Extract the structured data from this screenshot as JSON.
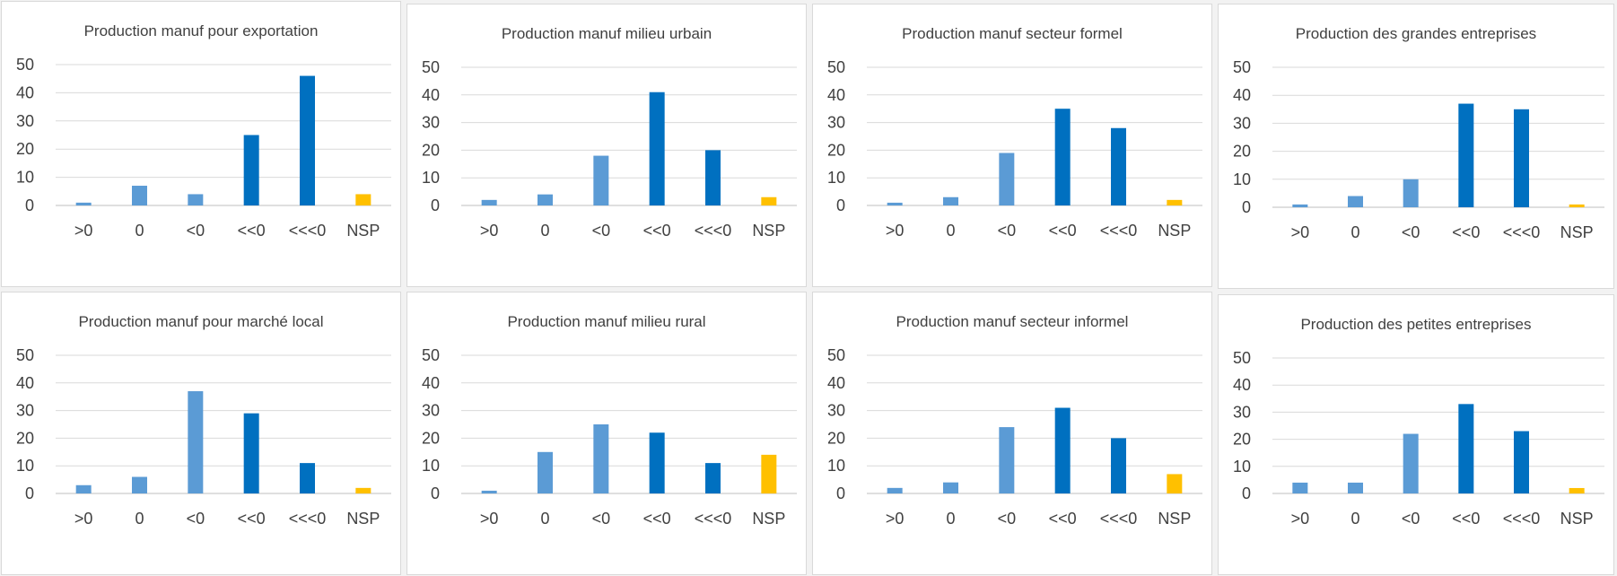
{
  "colors": {
    "light_blue": "#5b9bd5",
    "dark_blue": "#0070c0",
    "gold": "#ffc000"
  },
  "chart_data": [
    {
      "type": "bar",
      "title": "Production manuf pour exportation",
      "categories": [
        ">0",
        "0",
        "<0",
        "<<0",
        "<<<0",
        "NSP"
      ],
      "values": [
        1,
        7,
        4,
        25,
        46,
        4
      ],
      "bar_colors": [
        "light_blue",
        "light_blue",
        "light_blue",
        "dark_blue",
        "dark_blue",
        "gold"
      ],
      "ylim": [
        0,
        50
      ],
      "yticks": [
        0,
        10,
        20,
        30,
        40,
        50
      ],
      "grid": true,
      "legend": "none"
    },
    {
      "type": "bar",
      "title": "Production manuf milieu urbain",
      "categories": [
        ">0",
        "0",
        "<0",
        "<<0",
        "<<<0",
        "NSP"
      ],
      "values": [
        2,
        4,
        18,
        41,
        20,
        3
      ],
      "bar_colors": [
        "light_blue",
        "light_blue",
        "light_blue",
        "dark_blue",
        "dark_blue",
        "gold"
      ],
      "ylim": [
        0,
        50
      ],
      "yticks": [
        0,
        10,
        20,
        30,
        40,
        50
      ],
      "grid": true,
      "legend": "none"
    },
    {
      "type": "bar",
      "title": "Production manuf secteur formel",
      "categories": [
        ">0",
        "0",
        "<0",
        "<<0",
        "<<<0",
        "NSP"
      ],
      "values": [
        1,
        3,
        19,
        35,
        28,
        2
      ],
      "bar_colors": [
        "light_blue",
        "light_blue",
        "light_blue",
        "dark_blue",
        "dark_blue",
        "gold"
      ],
      "ylim": [
        0,
        50
      ],
      "yticks": [
        0,
        10,
        20,
        30,
        40,
        50
      ],
      "grid": true,
      "legend": "none"
    },
    {
      "type": "bar",
      "title": "Production des grandes entreprises",
      "categories": [
        ">0",
        "0",
        "<0",
        "<<0",
        "<<<0",
        "NSP"
      ],
      "values": [
        1,
        4,
        10,
        37,
        35,
        1
      ],
      "bar_colors": [
        "light_blue",
        "light_blue",
        "light_blue",
        "dark_blue",
        "dark_blue",
        "gold"
      ],
      "ylim": [
        0,
        50
      ],
      "yticks": [
        0,
        10,
        20,
        30,
        40,
        50
      ],
      "grid": true,
      "legend": "none"
    },
    {
      "type": "bar",
      "title": "Production manuf pour marché local",
      "categories": [
        ">0",
        "0",
        "<0",
        "<<0",
        "<<<0",
        "NSP"
      ],
      "values": [
        3,
        6,
        37,
        29,
        11,
        2
      ],
      "bar_colors": [
        "light_blue",
        "light_blue",
        "light_blue",
        "dark_blue",
        "dark_blue",
        "gold"
      ],
      "ylim": [
        0,
        50
      ],
      "yticks": [
        0,
        10,
        20,
        30,
        40,
        50
      ],
      "grid": true,
      "legend": "none"
    },
    {
      "type": "bar",
      "title": "Production manuf milieu rural",
      "categories": [
        ">0",
        "0",
        "<0",
        "<<0",
        "<<<0",
        "NSP"
      ],
      "values": [
        1,
        15,
        25,
        22,
        11,
        14
      ],
      "bar_colors": [
        "light_blue",
        "light_blue",
        "light_blue",
        "dark_blue",
        "dark_blue",
        "gold"
      ],
      "ylim": [
        0,
        50
      ],
      "yticks": [
        0,
        10,
        20,
        30,
        40,
        50
      ],
      "grid": true,
      "legend": "none"
    },
    {
      "type": "bar",
      "title": "Production manuf secteur informel",
      "categories": [
        ">0",
        "0",
        "<0",
        "<<0",
        "<<<0",
        "NSP"
      ],
      "values": [
        2,
        4,
        24,
        31,
        20,
        7
      ],
      "bar_colors": [
        "light_blue",
        "light_blue",
        "light_blue",
        "dark_blue",
        "dark_blue",
        "gold"
      ],
      "ylim": [
        0,
        50
      ],
      "yticks": [
        0,
        10,
        20,
        30,
        40,
        50
      ],
      "grid": true,
      "legend": "none"
    },
    {
      "type": "bar",
      "title": "Production des petites entreprises",
      "categories": [
        ">0",
        "0",
        "<0",
        "<<0",
        "<<<0",
        "NSP"
      ],
      "values": [
        4,
        4,
        22,
        33,
        23,
        2
      ],
      "bar_colors": [
        "light_blue",
        "light_blue",
        "light_blue",
        "dark_blue",
        "dark_blue",
        "gold"
      ],
      "ylim": [
        0,
        50
      ],
      "yticks": [
        0,
        10,
        20,
        30,
        40,
        50
      ],
      "grid": true,
      "legend": "none"
    }
  ]
}
